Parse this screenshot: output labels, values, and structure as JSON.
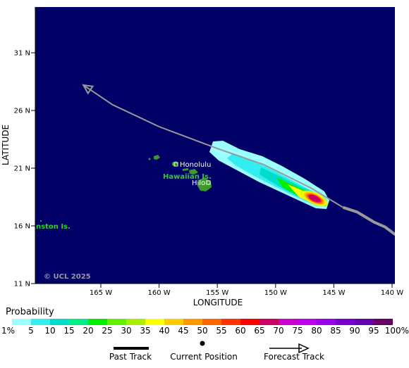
{
  "map": {
    "y_axis_label": "LATITUDE",
    "x_axis_label": "LONGITUDE",
    "lat_ticks": [
      "31 N",
      "26 N",
      "21 N",
      "16 N",
      "11 N"
    ],
    "lon_ticks": [
      "165 W",
      "160 W",
      "155 W",
      "150 W",
      "145 W",
      "140 W"
    ],
    "lat_values": [
      31,
      26,
      21,
      16,
      11
    ],
    "lon_values": [
      -165,
      -160,
      -155,
      -150,
      -145,
      -140
    ],
    "copyright": "© UCL 2025",
    "places": {
      "honolulu": "Honolulu",
      "hawaiian_islands": "Hawaiian Is.",
      "hilo": "Hilo",
      "johnston": "nston Is."
    },
    "colors": {
      "ocean": "#000066",
      "land": "#3a9b2a",
      "label_green": "#33cc33",
      "track": "#999999"
    }
  },
  "track": {
    "past": [
      [
        -144.2,
        17.6
      ],
      [
        -143.0,
        17.2
      ],
      [
        -141.5,
        16.3
      ],
      [
        -140.6,
        15.9
      ],
      [
        -139.8,
        15.3
      ],
      [
        -139.0,
        14.9
      ],
      [
        -138.3,
        14.8
      ]
    ],
    "forecast": [
      [
        -144.2,
        17.6
      ],
      [
        -147.0,
        19.3
      ],
      [
        -151.0,
        21.3
      ],
      [
        -155.0,
        22.7
      ],
      [
        -160.0,
        24.6
      ],
      [
        -164.0,
        26.5
      ],
      [
        -166.5,
        28.2
      ]
    ],
    "current_position": [
      -144.2,
      17.6
    ]
  },
  "legend": {
    "title": "Probability",
    "labels": [
      "1%",
      "5",
      "10",
      "15",
      "20",
      "25",
      "30",
      "35",
      "40",
      "45",
      "50",
      "55",
      "60",
      "65",
      "70",
      "75",
      "80",
      "85",
      "90",
      "95",
      "100%"
    ],
    "colors": [
      "#99ffff",
      "#33eeee",
      "#00ddcc",
      "#00ee88",
      "#00ee00",
      "#66ee00",
      "#aaee00",
      "#ffff00",
      "#ffcc00",
      "#ff9900",
      "#ff6600",
      "#ff3300",
      "#ff0000",
      "#cc0066",
      "#cc00cc",
      "#bb00ee",
      "#9900ee",
      "#7700cc",
      "#6600aa",
      "#660066"
    ],
    "past_track": "Past Track",
    "current_position": "Current Position",
    "forecast_track": "Forecast Track"
  }
}
